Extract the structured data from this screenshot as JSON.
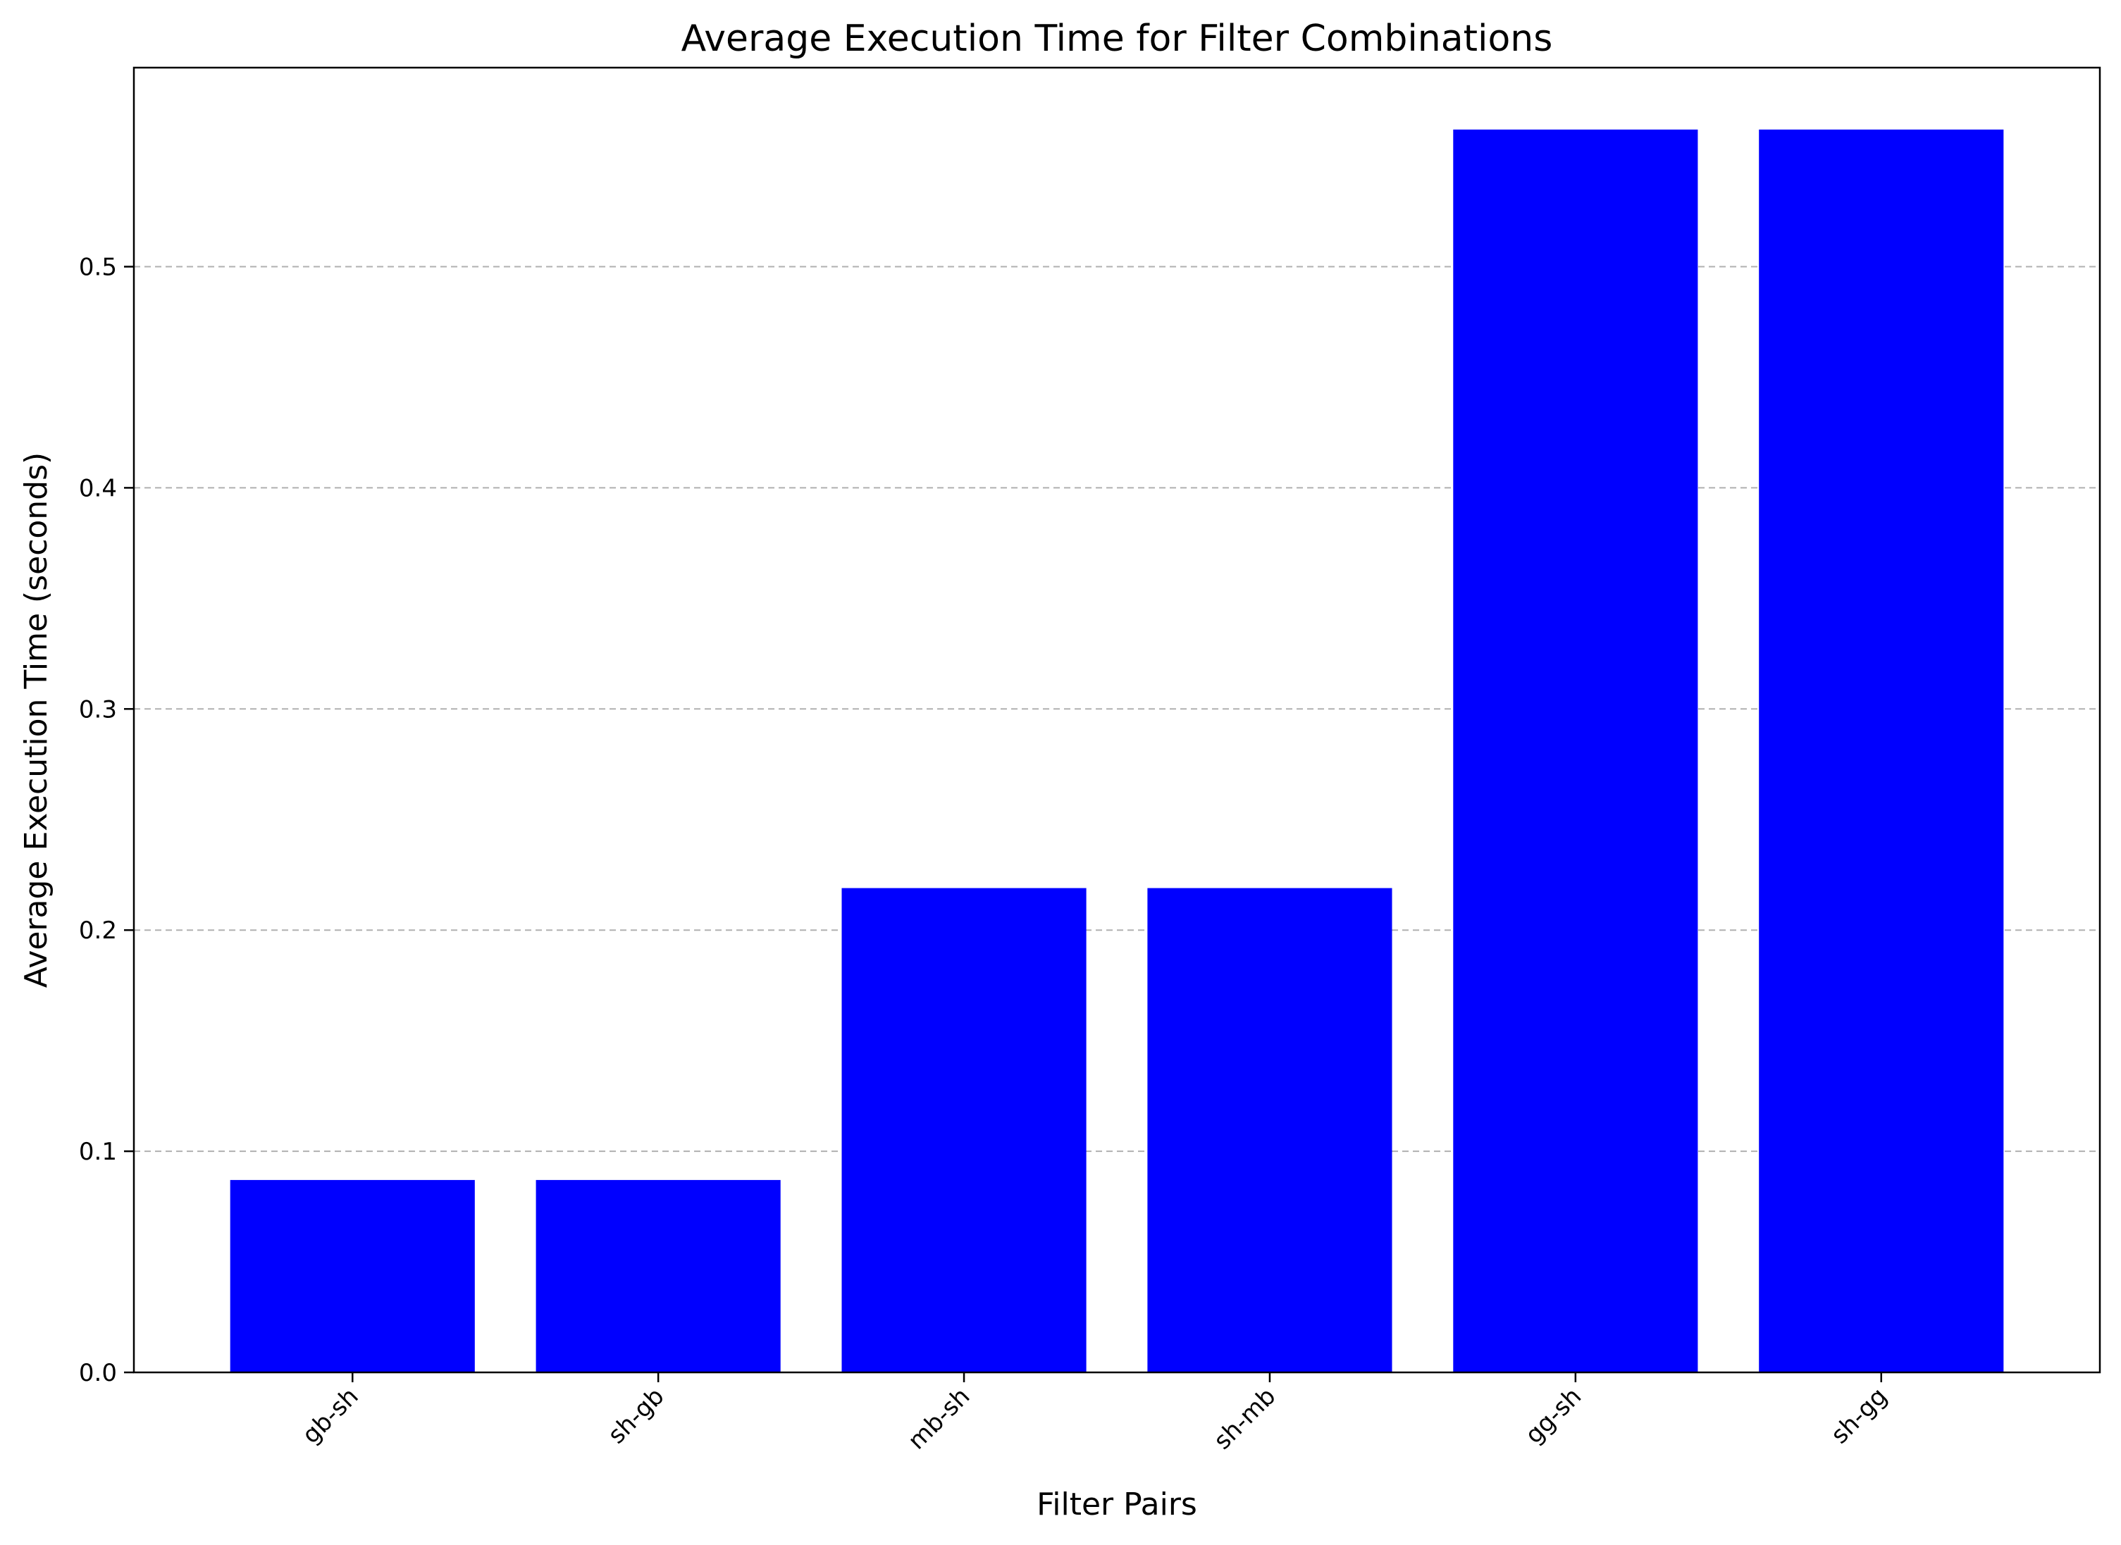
{
  "chart_data": {
    "type": "bar",
    "title": "Average Execution Time for Filter Combinations",
    "xlabel": "Filter Pairs",
    "ylabel": "Average Execution Time (seconds)",
    "categories": [
      "gb-sh",
      "sh-gb",
      "mb-sh",
      "sh-mb",
      "gg-sh",
      "sh-gg"
    ],
    "values": [
      0.087,
      0.087,
      0.219,
      0.219,
      0.562,
      0.562
    ],
    "ylim": [
      0,
      0.59
    ],
    "yticks": [
      0.0,
      0.1,
      0.2,
      0.3,
      0.4,
      0.5
    ],
    "ytick_labels": [
      "0.0",
      "0.1",
      "0.2",
      "0.3",
      "0.4",
      "0.5"
    ],
    "bar_color": "#0000ff",
    "grid": "y-dashed",
    "x_tick_rotation": 45
  }
}
